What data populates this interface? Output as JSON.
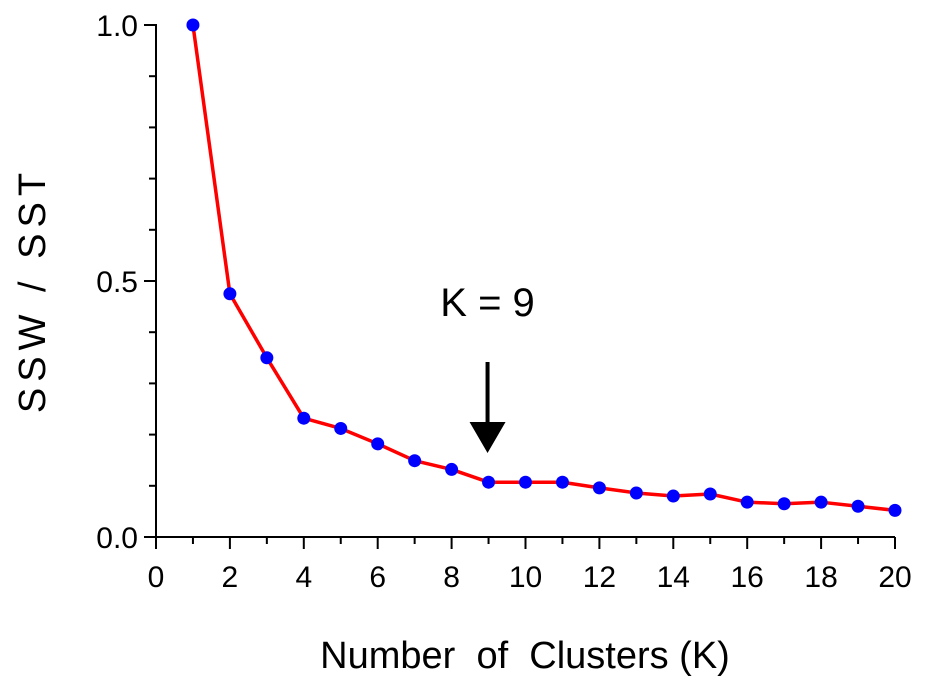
{
  "chart_data": {
    "type": "line",
    "xlabel": "Number  of  Clusters (K)",
    "ylabel": "SSW / SST",
    "xlim": [
      0,
      20
    ],
    "ylim": [
      0,
      1.0
    ],
    "x_ticks": [
      "0",
      "2",
      "4",
      "6",
      "8",
      "10",
      "12",
      "14",
      "16",
      "18",
      "20"
    ],
    "y_ticks": [
      "0.0",
      "0.5",
      "1.0"
    ],
    "grid": false,
    "series": [
      {
        "x": [
          1,
          2,
          3,
          4,
          5,
          6,
          7,
          8,
          9,
          10,
          11,
          12,
          13,
          14,
          15,
          16,
          17,
          18,
          19,
          20
        ],
        "values": [
          1.0,
          0.475,
          0.35,
          0.232,
          0.212,
          0.182,
          0.149,
          0.132,
          0.107,
          0.107,
          0.107,
          0.096,
          0.086,
          0.08,
          0.084,
          0.068,
          0.065,
          0.068,
          0.06,
          0.052
        ],
        "line_color": "#ff0000",
        "marker_color": "#0000ff"
      }
    ],
    "annotations": [
      {
        "text": "K = 9",
        "x": 9,
        "arrow": true
      }
    ]
  }
}
